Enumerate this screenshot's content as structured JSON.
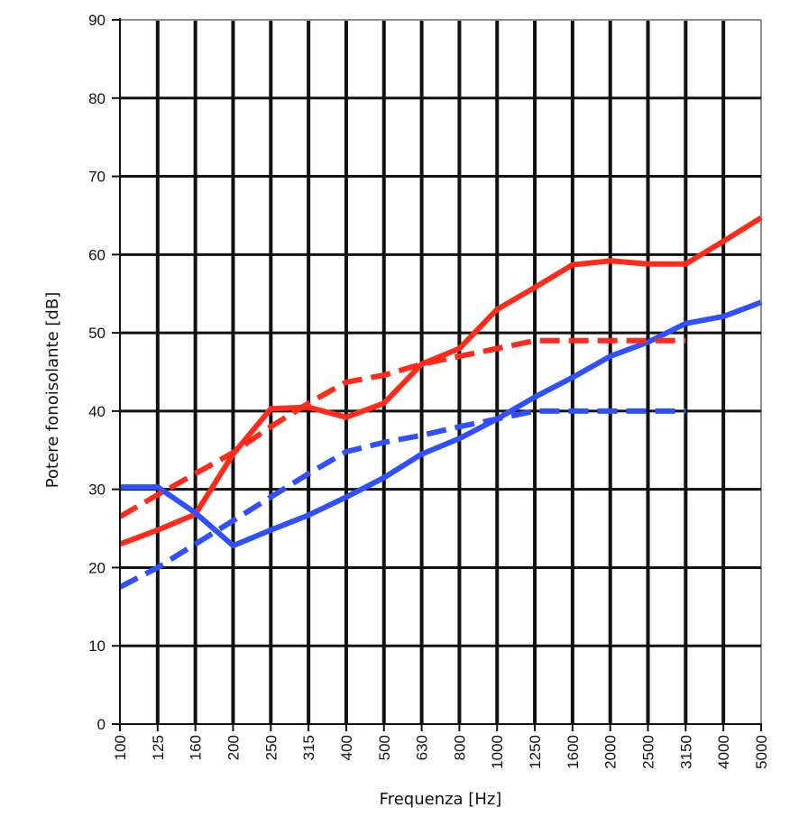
{
  "chart_data": {
    "type": "line",
    "title": "",
    "xlabel": "Frequenza [Hz]",
    "ylabel": "Potere fonoisolante [dB]",
    "categories": [
      "100",
      "125",
      "160",
      "200",
      "250",
      "315",
      "400",
      "500",
      "630",
      "800",
      "1000",
      "1250",
      "1600",
      "2000",
      "2500",
      "3150",
      "4000",
      "5000"
    ],
    "yticks": [
      "0",
      "10",
      "20",
      "30",
      "40",
      "50",
      "60",
      "70",
      "80",
      "90"
    ],
    "ylim": [
      0,
      90
    ],
    "grid": true,
    "series": [
      {
        "color": "#ff2a1a",
        "dash": false,
        "values": [
          23,
          24.8,
          26.8,
          34.5,
          40.3,
          40.5,
          39.2,
          41,
          46,
          48,
          53,
          55.8,
          58.7,
          59.2,
          58.8,
          58.8,
          61.7,
          64.7
        ]
      },
      {
        "color": "#3050ff",
        "dash": false,
        "values": [
          30.3,
          30.3,
          27,
          22.8,
          24.8,
          26.7,
          29,
          31.5,
          34.5,
          36.5,
          39,
          41.8,
          44.3,
          47,
          48.8,
          51.2,
          52.1,
          53.9
        ]
      },
      {
        "color": "#ff2a1a",
        "dash": true,
        "values": [
          26.5,
          29.3,
          32,
          34.7,
          38,
          41,
          43.7,
          44.6,
          46,
          47,
          48,
          49,
          49,
          49,
          49,
          49,
          null,
          null
        ]
      },
      {
        "color": "#3050ff",
        "dash": true,
        "values": [
          17.5,
          20,
          23,
          26,
          29,
          32,
          34.8,
          36,
          36.9,
          38,
          39,
          40,
          40,
          40,
          40,
          40,
          null,
          null
        ]
      }
    ]
  }
}
